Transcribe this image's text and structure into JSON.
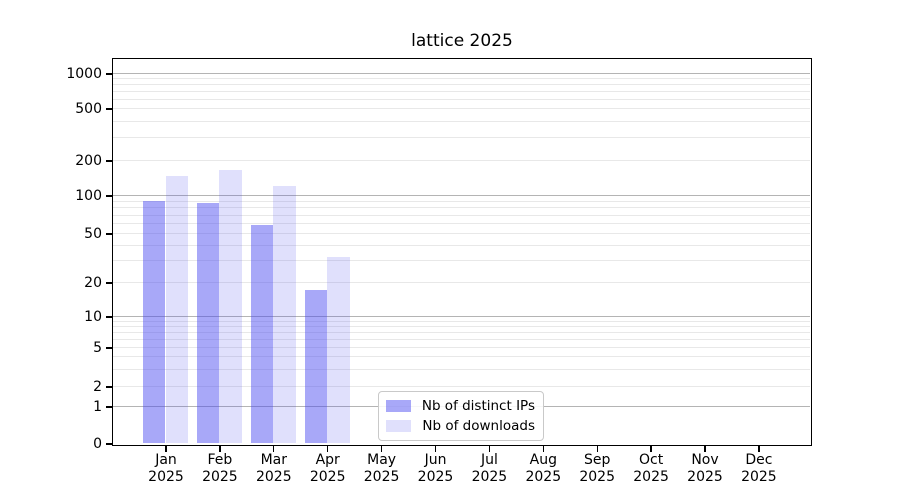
{
  "chart_data": {
    "type": "bar",
    "title": "lattice 2025",
    "categories": [
      "Jan",
      "Feb",
      "Mar",
      "Apr",
      "May",
      "Jun",
      "Jul",
      "Aug",
      "Sep",
      "Oct",
      "Nov",
      "Dec"
    ],
    "category_year": "2025",
    "series": [
      {
        "name": "Nb of distinct IPs",
        "color": "rgba(70,70,240,0.47)",
        "values": [
          90,
          88,
          58,
          17,
          0,
          0,
          0,
          0,
          0,
          0,
          0,
          0
        ]
      },
      {
        "name": "Nb of downloads",
        "color": "rgba(70,70,240,0.17)",
        "values": [
          147,
          165,
          120,
          32,
          0,
          0,
          0,
          0,
          0,
          0,
          0,
          0
        ]
      }
    ],
    "y_ticks": [
      0,
      1,
      2,
      5,
      10,
      20,
      50,
      100,
      200,
      500,
      1000
    ],
    "y_scale": "log-like",
    "ylim": [
      0,
      1300
    ],
    "grid": "horizontal",
    "legend_position": "bottom-center"
  }
}
